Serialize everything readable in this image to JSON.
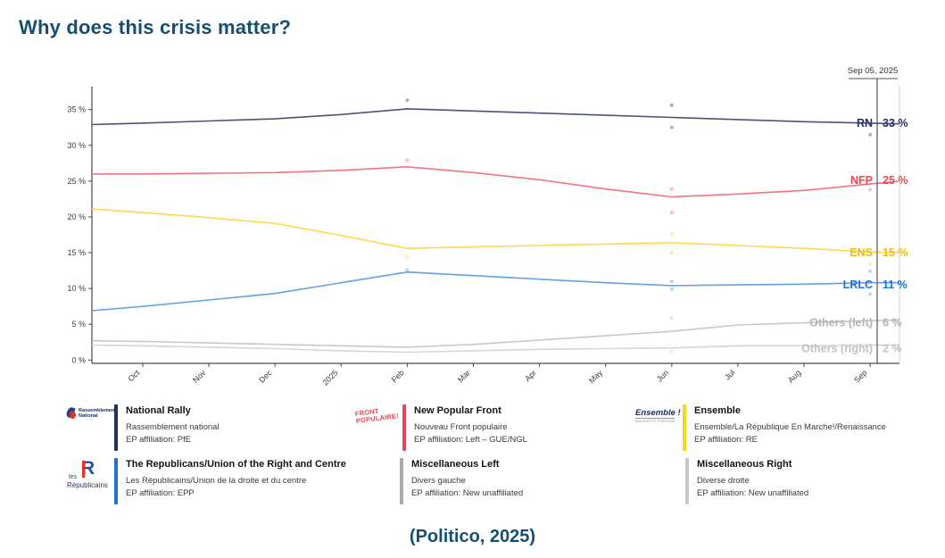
{
  "page": {
    "title": "Why does this crisis matter?",
    "caption": "(Politico, 2025)",
    "title_color": "#16506e"
  },
  "chart_data": {
    "type": "line",
    "title": "",
    "xlabel": "",
    "ylabel": "",
    "x_tick_labels": [
      "Oct",
      "Nov",
      "Dec",
      "2025",
      "Feb",
      "Mar",
      "Apr",
      "May",
      "Jun",
      "Jul",
      "Aug",
      "Sep"
    ],
    "y_ticks": [
      0,
      5,
      10,
      15,
      20,
      25,
      30,
      35
    ],
    "y_tick_suffix": " %",
    "ylim": [
      0,
      38
    ],
    "grid": false,
    "legend_position": "inline-right-labels",
    "date_marker": {
      "label": "Sep 05, 2025"
    },
    "series": [
      {
        "label": "RN",
        "value_text": "33 %",
        "label_at": 33.1,
        "color": "#4b5377",
        "label_color": "#262e60",
        "values": [
          32.9,
          33.1,
          33.4,
          33.7,
          34.3,
          35.1,
          34.8,
          34.5,
          34.2,
          33.9,
          33.6,
          33.3,
          33.1,
          33.0
        ],
        "scatter": [
          [
            5,
            36.3
          ],
          [
            9,
            35.6
          ],
          [
            9,
            32.5
          ],
          [
            12,
            31.5
          ]
        ]
      },
      {
        "label": "NFP",
        "value_text": "25 %",
        "label_at": 25.1,
        "color": "#f3747f",
        "label_color": "#f0444f",
        "values": [
          26.0,
          26.0,
          26.1,
          26.2,
          26.5,
          27.0,
          26.2,
          25.2,
          23.9,
          22.8,
          23.2,
          23.7,
          24.6,
          25.0
        ],
        "scatter": [
          [
            5,
            27.9
          ],
          [
            9,
            23.9
          ],
          [
            9,
            20.6
          ],
          [
            12,
            23.8
          ]
        ]
      },
      {
        "label": "ENS",
        "value_text": "15 %",
        "label_at": 15.0,
        "color": "#ffd850",
        "label_color": "#f0bd13",
        "values": [
          21.1,
          20.6,
          19.9,
          19.1,
          17.4,
          15.6,
          15.8,
          16.0,
          16.2,
          16.4,
          16.0,
          15.6,
          15.1,
          15.0
        ],
        "scatter": [
          [
            5,
            14.4
          ],
          [
            9,
            17.6
          ],
          [
            9,
            15.0
          ],
          [
            12,
            13.5
          ]
        ]
      },
      {
        "label": "LRLC",
        "value_text": "11 %",
        "label_at": 10.5,
        "color": "#66a1e6",
        "label_color": "#1b74d4",
        "values": [
          6.9,
          7.5,
          8.4,
          9.3,
          10.8,
          12.3,
          11.8,
          11.3,
          10.8,
          10.4,
          10.5,
          10.6,
          10.8,
          10.8
        ],
        "scatter": [
          [
            5,
            12.6
          ],
          [
            9,
            11.0
          ],
          [
            9,
            9.9
          ],
          [
            12,
            12.4
          ],
          [
            12,
            9.2
          ]
        ]
      },
      {
        "label": "Others (left)",
        "value_text": "6 %",
        "label_at": 5.2,
        "color": "#c8c8c8",
        "label_color": "#b4b4b4",
        "values": [
          2.7,
          2.6,
          2.4,
          2.2,
          2.0,
          1.8,
          2.2,
          2.8,
          3.4,
          4.0,
          4.9,
          5.2,
          5.5,
          5.6
        ],
        "scatter": [
          [
            9,
            5.9
          ],
          [
            12,
            4.7
          ]
        ]
      },
      {
        "label": "Others (right)",
        "value_text": "2 %",
        "label_at": 1.6,
        "color": "#d6d6d6",
        "label_color": "#c2c2c2",
        "values": [
          2.1,
          2.0,
          1.8,
          1.6,
          1.3,
          1.1,
          1.3,
          1.5,
          1.6,
          1.7,
          2.0,
          2.0,
          2.1,
          2.1
        ],
        "scatter": [
          [
            9,
            1.2
          ]
        ]
      }
    ]
  },
  "legend": {
    "entries": [
      {
        "logo_type": "rn",
        "logo_line1": "Rassemblement",
        "logo_line2": "National",
        "color": "#242e5f",
        "name": "National Rally",
        "native": "Rassemblement national",
        "affiliation": "EP affiliation: PfE"
      },
      {
        "logo_type": "fp",
        "logo_line1": "FRONT",
        "logo_line2": "POPULAIRE!",
        "color": "#ef4155",
        "name": "New Popular Front",
        "native": "Nouveau Front populaire",
        "affiliation": "EP affiliation: Left – GUE/NGL"
      },
      {
        "logo_type": "ens",
        "logo_line1": "Ensemble !",
        "logo_line2": "majorité présidentielle",
        "color": "#ffd21e",
        "name": "Ensemble",
        "native": "Ensemble/La République En Marche!/Renaissance",
        "affiliation": "EP affiliation: RE"
      },
      {
        "logo_type": "lr",
        "logo_line1": "les",
        "logo_line2": "R",
        "logo_line3": "Républicains",
        "color": "#2273d0",
        "name": "The Republicans/Union of the Right and Centre",
        "native": "Les Républicains/Union de la droite et du centre",
        "affiliation": "EP affiliation: EPP"
      },
      {
        "logo_type": null,
        "color": "#ababab",
        "name": "Miscellaneous Left",
        "native": "Divers gauche",
        "affiliation": "EP affiliation: New unaffiliated"
      },
      {
        "logo_type": null,
        "color": "#c9c9c9",
        "name": "Miscellaneous Right",
        "native": "Diverse droite",
        "affiliation": "EP affiliation: New unaffiliated"
      }
    ]
  }
}
